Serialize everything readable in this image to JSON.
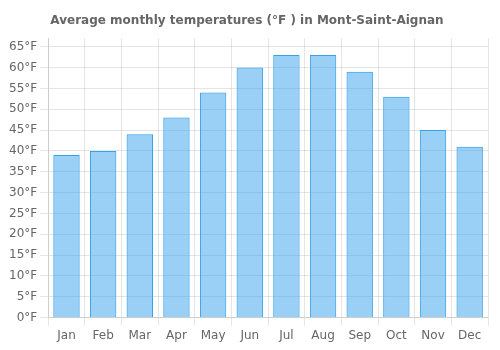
{
  "chart_data": {
    "type": "bar",
    "title": "Average monthly temperatures (°F ) in Mont-Saint-Aignan",
    "categories": [
      "Jan",
      "Feb",
      "Mar",
      "Apr",
      "May",
      "Jun",
      "Jul",
      "Aug",
      "Sep",
      "Oct",
      "Nov",
      "Dec"
    ],
    "values": [
      39,
      40,
      44,
      48,
      54,
      60,
      63,
      63,
      59,
      53,
      45,
      41
    ],
    "ylim": [
      0,
      67
    ],
    "yticks": [
      {
        "value": 0,
        "label": "0°F"
      },
      {
        "value": 5,
        "label": "5°F"
      },
      {
        "value": 10,
        "label": "10°F"
      },
      {
        "value": 15,
        "label": "15°F"
      },
      {
        "value": 20,
        "label": "20°F"
      },
      {
        "value": 25,
        "label": "25°F"
      },
      {
        "value": 30,
        "label": "30°F"
      },
      {
        "value": 35,
        "label": "35°F"
      },
      {
        "value": 40,
        "label": "40°F"
      },
      {
        "value": 45,
        "label": "45°F"
      },
      {
        "value": 50,
        "label": "50°F"
      },
      {
        "value": 55,
        "label": "55°F"
      },
      {
        "value": 60,
        "label": "60°F"
      },
      {
        "value": 65,
        "label": "65°F"
      }
    ],
    "grid": true
  }
}
